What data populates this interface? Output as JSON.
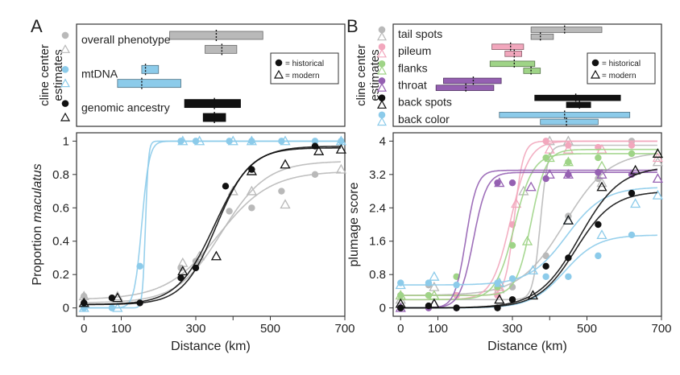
{
  "colors": {
    "gray": "#b9b9b9",
    "blue": "#8ccbea",
    "black": "#111111",
    "pink": "#f2a7bd",
    "green": "#9fd487",
    "purple": "#9560b2"
  },
  "chart_data": [
    {
      "panel": "A",
      "type": "interval",
      "ylabel": "cline center estimates",
      "xlim": [
        -20,
        700
      ],
      "legend": {
        "historical": "= historical",
        "modern": "= modern",
        "position": "right"
      },
      "traits": [
        {
          "name": "overall phenotype",
          "color": "gray",
          "historical": {
            "lo": 230,
            "center": 355,
            "hi": 480
          },
          "modern": {
            "lo": 325,
            "center": 370,
            "hi": 410
          }
        },
        {
          "name": "mtDNA",
          "color": "blue",
          "historical": {
            "lo": 155,
            "center": 165,
            "hi": 200
          },
          "modern": {
            "lo": 90,
            "center": 155,
            "hi": 260
          }
        },
        {
          "name": "genomic ancestry",
          "color": "black",
          "historical": {
            "lo": 270,
            "center": 350,
            "hi": 420
          },
          "modern": {
            "lo": 320,
            "center": 350,
            "hi": 380
          }
        }
      ]
    },
    {
      "panel": "A",
      "type": "line",
      "xlabel": "Distance (km)",
      "ylabel": "Proportion ",
      "ylabel_italic": "maculatus",
      "xlim": [
        -20,
        700
      ],
      "ylim": [
        -0.05,
        1.05
      ],
      "xticks": [
        0,
        100,
        300,
        400,
        500,
        700
      ],
      "xtick_labels": [
        "0",
        "100",
        "300",
        "",
        "500",
        "700"
      ],
      "yticks": [
        0,
        0.2,
        0.4,
        0.6,
        0.8,
        1
      ],
      "ytick_labels": [
        "0",
        "0.2",
        "0.4",
        "0.6",
        "0.8",
        "1"
      ],
      "series": [
        {
          "trait": "overall phenotype",
          "period": "historical",
          "color": "gray",
          "curve": {
            "min": 0.05,
            "max": 0.82,
            "center": 360,
            "width": 70
          },
          "points": [
            [
              0,
              0.07
            ],
            [
              75,
              0.06
            ],
            [
              260,
              0.24
            ],
            [
              300,
              0.28
            ],
            [
              390,
              0.58
            ],
            [
              450,
              0.6
            ],
            [
              530,
              0.7
            ],
            [
              620,
              0.8
            ]
          ]
        },
        {
          "trait": "overall phenotype",
          "period": "modern",
          "color": "gray",
          "curve": {
            "min": 0.03,
            "max": 0.88,
            "center": 370,
            "width": 60
          },
          "points": [
            [
              0,
              0.07
            ],
            [
              90,
              0.07
            ],
            [
              265,
              0.27
            ],
            [
              310,
              0.31
            ],
            [
              400,
              0.7
            ],
            [
              450,
              0.7
            ],
            [
              540,
              0.62
            ],
            [
              690,
              0.83
            ]
          ]
        },
        {
          "trait": "mtDNA",
          "period": "historical",
          "color": "blue",
          "curve": {
            "min": 0.0,
            "max": 1.0,
            "center": 165,
            "width": 4
          },
          "points": [
            [
              0,
              0.0
            ],
            [
              75,
              0.0
            ],
            [
              150,
              0.25
            ],
            [
              260,
              1.0
            ],
            [
              300,
              1.0
            ],
            [
              390,
              1.0
            ],
            [
              450,
              1.0
            ],
            [
              530,
              1.0
            ],
            [
              620,
              1.0
            ],
            [
              690,
              1.0
            ]
          ]
        },
        {
          "trait": "mtDNA",
          "period": "modern",
          "color": "blue",
          "curve": {
            "min": 0.0,
            "max": 1.0,
            "center": 155,
            "width": 10
          },
          "points": [
            [
              0,
              0.0
            ],
            [
              90,
              0.0
            ],
            [
              265,
              1.0
            ],
            [
              310,
              1.0
            ],
            [
              400,
              1.0
            ],
            [
              450,
              1.0
            ],
            [
              540,
              1.0
            ],
            [
              690,
              1.0
            ]
          ]
        },
        {
          "trait": "genomic ancestry",
          "period": "historical",
          "color": "black",
          "curve": {
            "min": 0.02,
            "max": 0.97,
            "center": 350,
            "width": 50
          },
          "points": [
            [
              0,
              0.03
            ],
            [
              75,
              0.06
            ],
            [
              150,
              0.03
            ],
            [
              260,
              0.18
            ],
            [
              300,
              0.24
            ],
            [
              380,
              0.73
            ],
            [
              450,
              0.83
            ],
            [
              620,
              0.97
            ]
          ]
        },
        {
          "trait": "genomic ancestry",
          "period": "modern",
          "color": "black",
          "curve": {
            "min": 0.02,
            "max": 0.96,
            "center": 355,
            "width": 45
          },
          "points": [
            [
              0,
              0.03
            ],
            [
              90,
              0.06
            ],
            [
              265,
              0.22
            ],
            [
              355,
              0.31
            ],
            [
              450,
              0.82
            ],
            [
              540,
              0.86
            ],
            [
              630,
              0.94
            ],
            [
              690,
              0.95
            ]
          ]
        }
      ]
    },
    {
      "panel": "B",
      "type": "interval",
      "ylabel": "cline center estimates",
      "xlim": [
        -20,
        700
      ],
      "legend": {
        "historical": "= historical",
        "modern": "= modern",
        "position": "right"
      },
      "traits": [
        {
          "name": "tail spots",
          "color": "gray",
          "historical": {
            "lo": 350,
            "center": 440,
            "hi": 540
          },
          "modern": {
            "lo": 350,
            "center": 375,
            "hi": 410
          }
        },
        {
          "name": "pileum",
          "color": "pink",
          "historical": {
            "lo": 245,
            "center": 295,
            "hi": 330
          },
          "modern": {
            "lo": 280,
            "center": 305,
            "hi": 325
          }
        },
        {
          "name": "flanks",
          "color": "green",
          "historical": {
            "lo": 240,
            "center": 305,
            "hi": 360
          },
          "modern": {
            "lo": 330,
            "center": 350,
            "hi": 375
          }
        },
        {
          "name": "throat",
          "color": "purple",
          "historical": {
            "lo": 115,
            "center": 195,
            "hi": 270
          },
          "modern": {
            "lo": 95,
            "center": 175,
            "hi": 250
          }
        },
        {
          "name": "back spots",
          "color": "black",
          "historical": {
            "lo": 360,
            "center": 470,
            "hi": 590
          },
          "modern": {
            "lo": 445,
            "center": 480,
            "hi": 510
          }
        },
        {
          "name": "back color",
          "color": "blue",
          "historical": {
            "lo": 265,
            "center": 440,
            "hi": 615
          },
          "modern": {
            "lo": 375,
            "center": 445,
            "hi": 530
          }
        }
      ]
    },
    {
      "panel": "B",
      "type": "line",
      "xlabel": "Distance (km)",
      "ylabel": "plumage score",
      "xlim": [
        -20,
        700
      ],
      "ylim": [
        -0.2,
        4.2
      ],
      "xticks": [
        0,
        100,
        300,
        400,
        500,
        700
      ],
      "xtick_labels": [
        "0",
        "100",
        "300",
        "",
        "500",
        "700"
      ],
      "yticks": [
        0,
        0.8,
        1.6,
        2.4,
        3.2,
        4
      ],
      "ytick_labels": [
        "0",
        "0.8",
        "1.6",
        "2.4",
        "3.2",
        "4"
      ],
      "series": [
        {
          "trait": "tail spots",
          "period": "historical",
          "color": "gray",
          "curve": {
            "min": 0.3,
            "max": 3.75,
            "center": 440,
            "width": 60
          },
          "points": [
            [
              0,
              0.3
            ],
            [
              75,
              0.55
            ],
            [
              150,
              0.3
            ],
            [
              260,
              0.3
            ],
            [
              300,
              0.5
            ],
            [
              390,
              1.25
            ],
            [
              450,
              2.2
            ],
            [
              530,
              3.1
            ],
            [
              620,
              4.0
            ]
          ]
        },
        {
          "trait": "tail spots",
          "period": "modern",
          "color": "gray",
          "curve": {
            "min": 0.2,
            "max": 3.9,
            "center": 375,
            "width": 10
          },
          "points": [
            [
              0,
              0.2
            ],
            [
              90,
              0.5
            ],
            [
              265,
              0.45
            ],
            [
              330,
              2.8
            ],
            [
              400,
              4.0
            ],
            [
              450,
              4.0
            ],
            [
              540,
              3.0
            ],
            [
              690,
              3.5
            ]
          ]
        },
        {
          "trait": "pileum",
          "period": "historical",
          "color": "pink",
          "curve": {
            "min": 0.2,
            "max": 4.0,
            "center": 295,
            "width": 25
          },
          "points": [
            [
              0,
              0.3
            ],
            [
              75,
              0.3
            ],
            [
              150,
              0.3
            ],
            [
              260,
              0.3
            ],
            [
              300,
              2.0
            ],
            [
              390,
              4.0
            ],
            [
              450,
              3.9
            ],
            [
              530,
              3.85
            ],
            [
              620,
              3.9
            ]
          ]
        },
        {
          "trait": "pileum",
          "period": "modern",
          "color": "pink",
          "curve": {
            "min": 0.3,
            "max": 4.0,
            "center": 305,
            "width": 12
          },
          "points": [
            [
              0,
              0.3
            ],
            [
              90,
              0.3
            ],
            [
              265,
              0.5
            ],
            [
              310,
              2.5
            ],
            [
              400,
              3.8
            ],
            [
              450,
              3.8
            ],
            [
              540,
              3.8
            ],
            [
              690,
              3.6
            ]
          ]
        },
        {
          "trait": "flanks",
          "period": "historical",
          "color": "green",
          "curve": {
            "min": 0.2,
            "max": 3.7,
            "center": 305,
            "width": 25
          },
          "points": [
            [
              0,
              0.3
            ],
            [
              75,
              0.3
            ],
            [
              150,
              0.75
            ],
            [
              260,
              0.5
            ],
            [
              300,
              1.5
            ],
            [
              390,
              3.6
            ],
            [
              450,
              3.5
            ],
            [
              530,
              3.6
            ],
            [
              620,
              3.7
            ]
          ]
        },
        {
          "trait": "flanks",
          "period": "modern",
          "color": "green",
          "curve": {
            "min": 0.3,
            "max": 3.8,
            "center": 350,
            "width": 20
          },
          "points": [
            [
              0,
              0.3
            ],
            [
              90,
              0.3
            ],
            [
              265,
              0.6
            ],
            [
              340,
              1.6
            ],
            [
              400,
              3.6
            ],
            [
              450,
              3.5
            ],
            [
              540,
              3.4
            ],
            [
              690,
              3.7
            ]
          ]
        },
        {
          "trait": "throat",
          "period": "historical",
          "color": "purple",
          "curve": {
            "min": 0.0,
            "max": 3.25,
            "center": 195,
            "width": 18
          },
          "points": [
            [
              0,
              0.0
            ],
            [
              75,
              0.0
            ],
            [
              150,
              0.0
            ],
            [
              260,
              3.0
            ],
            [
              300,
              3.0
            ],
            [
              390,
              3.1
            ],
            [
              450,
              3.2
            ],
            [
              530,
              3.25
            ],
            [
              620,
              3.2
            ]
          ]
        },
        {
          "trait": "throat",
          "period": "modern",
          "color": "purple",
          "curve": {
            "min": 0.0,
            "max": 3.3,
            "center": 175,
            "width": 15
          },
          "points": [
            [
              0,
              0.0
            ],
            [
              90,
              0.1
            ],
            [
              265,
              3.0
            ],
            [
              350,
              2.9
            ],
            [
              400,
              3.2
            ],
            [
              450,
              3.2
            ],
            [
              540,
              3.2
            ],
            [
              690,
              3.1
            ]
          ]
        },
        {
          "trait": "back spots",
          "period": "historical",
          "color": "black",
          "curve": {
            "min": 0.0,
            "max": 2.8,
            "center": 470,
            "width": 50
          },
          "points": [
            [
              0,
              0.0
            ],
            [
              75,
              0.05
            ],
            [
              150,
              0.0
            ],
            [
              260,
              0.0
            ],
            [
              300,
              0.2
            ],
            [
              390,
              1.0
            ],
            [
              450,
              1.2
            ],
            [
              530,
              2.0
            ],
            [
              620,
              2.75
            ]
          ]
        },
        {
          "trait": "back spots",
          "period": "modern",
          "color": "black",
          "curve": {
            "min": 0.0,
            "max": 3.4,
            "center": 480,
            "width": 55
          },
          "points": [
            [
              0,
              0.1
            ],
            [
              90,
              0.1
            ],
            [
              265,
              0.2
            ],
            [
              355,
              0.3
            ],
            [
              450,
              2.1
            ],
            [
              540,
              2.9
            ],
            [
              630,
              3.3
            ],
            [
              690,
              3.7
            ]
          ]
        },
        {
          "trait": "back color",
          "period": "historical",
          "color": "blue",
          "curve": {
            "min": 0.0,
            "max": 1.75,
            "center": 440,
            "width": 45
          },
          "points": [
            [
              0,
              0.6
            ],
            [
              75,
              0.6
            ],
            [
              150,
              0.55
            ],
            [
              260,
              0.6
            ],
            [
              300,
              0.7
            ],
            [
              390,
              0.75
            ],
            [
              450,
              0.75
            ],
            [
              530,
              1.25
            ],
            [
              620,
              1.75
            ]
          ]
        },
        {
          "trait": "back color",
          "period": "modern",
          "color": "blue",
          "curve": {
            "min": 0.55,
            "max": 2.9,
            "center": 445,
            "width": 50
          },
          "points": [
            [
              0,
              0.55
            ],
            [
              90,
              0.75
            ],
            [
              265,
              0.6
            ],
            [
              355,
              0.9
            ],
            [
              450,
              2.1
            ],
            [
              540,
              1.75
            ],
            [
              630,
              2.5
            ],
            [
              690,
              2.7
            ]
          ]
        }
      ]
    }
  ],
  "labels": {
    "panel_a": "A",
    "panel_b": "B"
  }
}
